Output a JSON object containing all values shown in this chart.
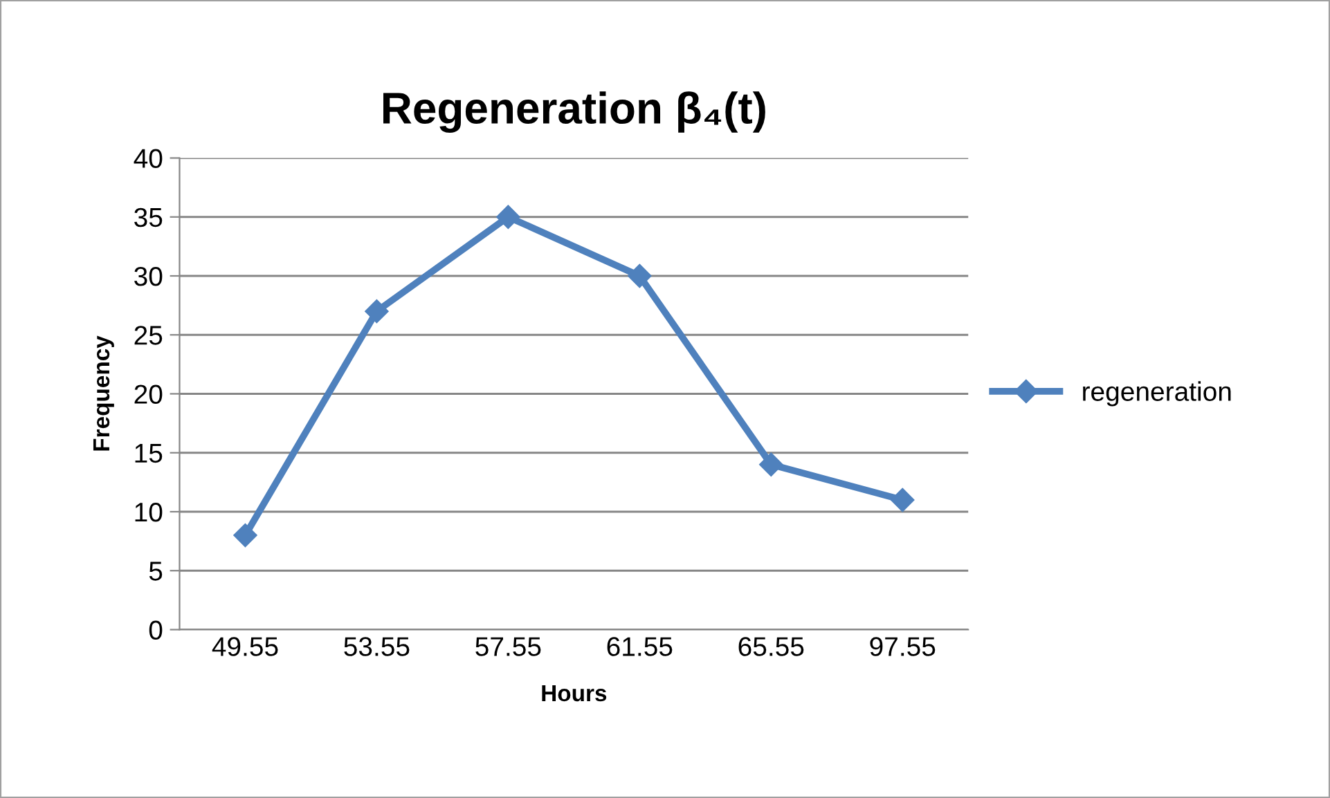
{
  "chart_data": {
    "type": "line",
    "title": "Regeneration β₄(t)",
    "xlabel": "Hours",
    "ylabel": "Frequency",
    "categories": [
      "49.55",
      "53.55",
      "57.55",
      "61.55",
      "65.55",
      "97.55"
    ],
    "series": [
      {
        "name": "regeneration",
        "color": "#4f81bd",
        "values": [
          8,
          27,
          35,
          30,
          14,
          11
        ]
      }
    ],
    "ylim": [
      0,
      40
    ],
    "yticks": [
      0,
      5,
      10,
      15,
      20,
      25,
      30,
      35,
      40
    ],
    "grid": "y",
    "legend": "right",
    "marker": "diamond",
    "line_style": "solid"
  }
}
